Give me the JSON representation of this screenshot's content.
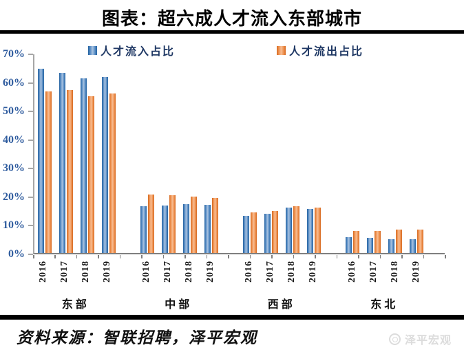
{
  "title": "图表：超六成人才流入东部城市",
  "legend": {
    "items": [
      {
        "label": "人才流入占比",
        "color": "#2a66a8"
      },
      {
        "label": "人才流出占比",
        "color": "#e2752f"
      }
    ]
  },
  "source": {
    "text": "资料来源：智联招聘，泽平宏观"
  },
  "watermark": {
    "icon": "zeping-logo",
    "text": "泽平宏观"
  },
  "chart_data": {
    "type": "bar",
    "title": "图表：超六成人才流入东部城市",
    "groups": [
      "东部",
      "中部",
      "西部",
      "东北"
    ],
    "years": [
      "2016",
      "2017",
      "2018",
      "2019"
    ],
    "series": [
      {
        "name": "人才流入占比",
        "color": "#2a66a8",
        "values": [
          [
            64.8,
            63.5,
            61.5,
            62.0
          ],
          [
            16.5,
            16.8,
            17.3,
            17.0
          ],
          [
            13.2,
            13.8,
            15.9,
            15.4
          ],
          [
            5.6,
            5.3,
            4.8,
            4.8
          ]
        ]
      },
      {
        "name": "人才流出占比",
        "color": "#e2752f",
        "values": [
          [
            57.0,
            57.3,
            55.3,
            56.1
          ],
          [
            20.6,
            20.3,
            19.8,
            19.5
          ],
          [
            14.4,
            14.7,
            16.5,
            16.0
          ],
          [
            7.7,
            7.7,
            8.3,
            8.3
          ]
        ]
      }
    ],
    "ylabel_ticks": [
      "0%",
      "10%",
      "20%",
      "30%",
      "40%",
      "50%",
      "60%",
      "70%"
    ],
    "ylim": [
      0,
      70
    ],
    "grid": false,
    "legend_position": "top",
    "axis_color": "#a6a6a6",
    "tick_label_color": "#2e5b9e"
  }
}
